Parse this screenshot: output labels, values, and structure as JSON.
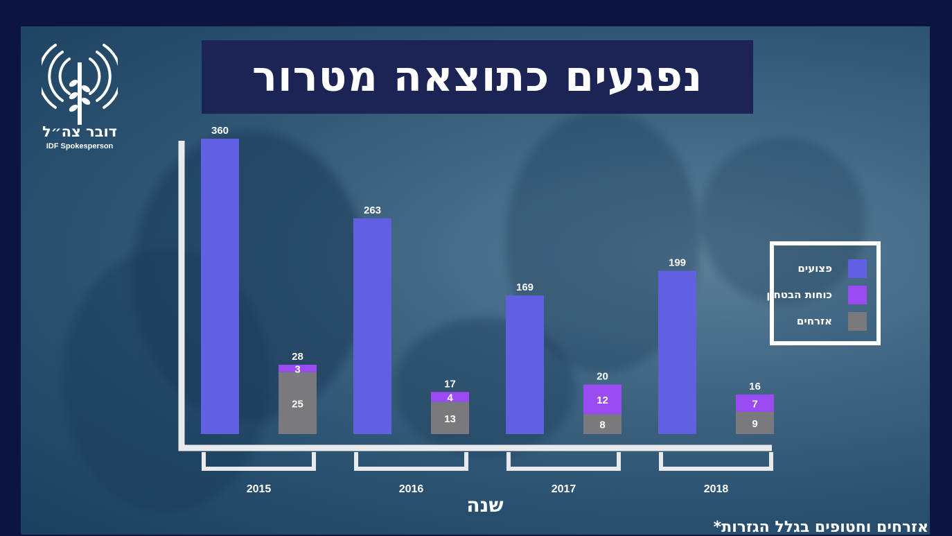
{
  "title": "נפגעים כתוצאה מטרור",
  "logo": {
    "hebrew": "דובר צה״ל",
    "english": "IDF Spokesperson"
  },
  "footnote": "*אזרחים וחטופים בגלל הגזרות",
  "legend": {
    "items": [
      {
        "label": "פצועים",
        "color": "#6060e0"
      },
      {
        "label": "כוחות הבטחון",
        "color": "#9a4cf2"
      },
      {
        "label": "אזרחים",
        "color": "#7a7a7e"
      }
    ]
  },
  "colors": {
    "wounded": "#6060e0",
    "security": "#9a4cf2",
    "civilians": "#7a7a7e",
    "axis": "#e9e9ee"
  },
  "chart_data": {
    "type": "bar",
    "title": "נפגעים כתוצאה מטרור",
    "xlabel": "שנה",
    "ylabel": "",
    "ylim": [
      0,
      360
    ],
    "categories": [
      "2015",
      "2016",
      "2017",
      "2018"
    ],
    "series": [
      {
        "name": "פצועים",
        "values": [
          360,
          263,
          169,
          199
        ]
      },
      {
        "name": "כוחות הבטחון",
        "values": [
          3,
          4,
          12,
          7
        ]
      },
      {
        "name": "אזרחים",
        "values": [
          25,
          13,
          8,
          9
        ]
      }
    ],
    "stack_totals": [
      28,
      17,
      20,
      16
    ],
    "stacked_series": [
      "אזרחים",
      "כוחות הבטחון"
    ],
    "grid": false,
    "legend_position": "right"
  }
}
